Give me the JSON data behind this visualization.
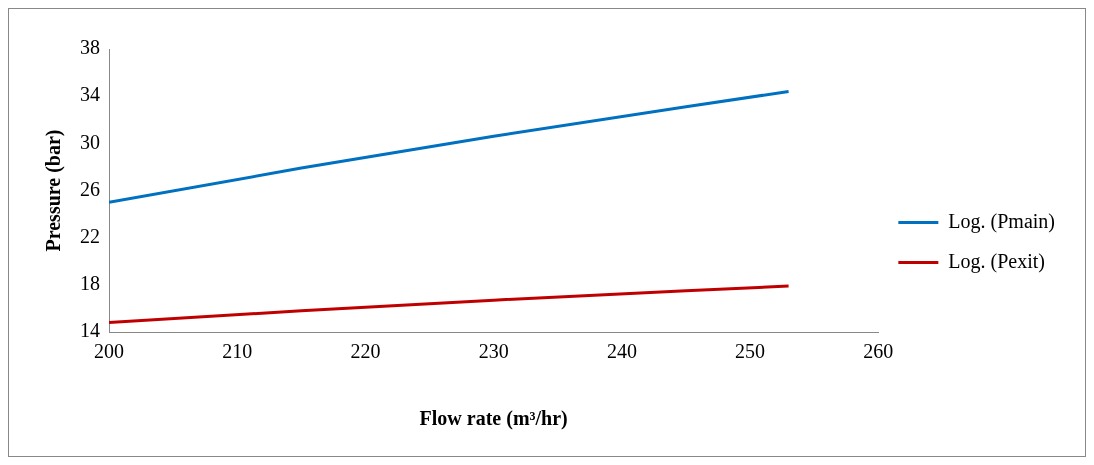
{
  "chart_data": {
    "type": "line",
    "xlabel": "Flow rate (m³/hr)",
    "ylabel": "Pressure (bar)",
    "xlim": [
      200,
      260
    ],
    "xticks": [
      200,
      210,
      220,
      230,
      240,
      250,
      260
    ],
    "ylim": [
      14,
      38
    ],
    "yticks": [
      14,
      18,
      22,
      26,
      30,
      34,
      38
    ],
    "grid": false,
    "legend": "right",
    "marker": "none",
    "line_style": "solid",
    "series": [
      {
        "name": "Log. (Pmain)",
        "color": "#0070c0",
        "x": [
          200,
          215,
          230,
          245,
          253
        ],
        "values": [
          25,
          27.9,
          30.6,
          33.1,
          34.4
        ]
      },
      {
        "name": "Log. (Pexit)",
        "color": "#c00000",
        "x": [
          200,
          215,
          230,
          245,
          253
        ],
        "values": [
          14.8,
          15.8,
          16.7,
          17.5,
          17.9
        ]
      }
    ]
  }
}
